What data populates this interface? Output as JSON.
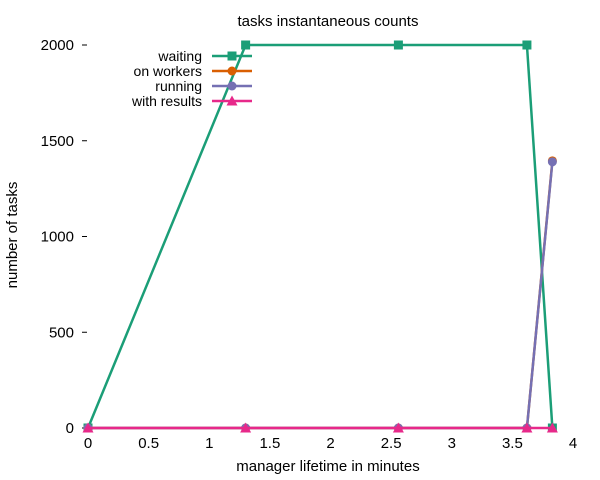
{
  "chart_data": {
    "type": "line",
    "title": "tasks instantaneous counts",
    "xlabel": "manager lifetime in minutes",
    "ylabel": "number of tasks",
    "xlim": [
      0,
      4
    ],
    "ylim": [
      0,
      2000
    ],
    "x_ticks": [
      "0",
      "0.5",
      "1",
      "1.5",
      "2",
      "2.5",
      "3",
      "3.5",
      "4"
    ],
    "y_ticks": [
      "0",
      "500",
      "1000",
      "1500",
      "2000"
    ],
    "grid": false,
    "legend_position": "top-left",
    "series": [
      {
        "name": "waiting",
        "color": "#1b9e77",
        "marker": "square",
        "points": [
          [
            0,
            0
          ],
          [
            1.3,
            2000
          ],
          [
            2.56,
            2000
          ],
          [
            3.62,
            2000
          ],
          [
            3.83,
            0
          ]
        ]
      },
      {
        "name": "on workers",
        "color": "#d95f02",
        "marker": "circle",
        "points": [
          [
            0,
            0
          ],
          [
            1.3,
            0
          ],
          [
            2.56,
            0
          ],
          [
            3.62,
            0
          ],
          [
            3.83,
            1395
          ]
        ]
      },
      {
        "name": "running",
        "color": "#7570b3",
        "marker": "circle",
        "points": [
          [
            0,
            0
          ],
          [
            1.3,
            0
          ],
          [
            2.56,
            0
          ],
          [
            3.62,
            0
          ],
          [
            3.83,
            1390
          ]
        ]
      },
      {
        "name": "with results",
        "color": "#e7298a",
        "marker": "triangle",
        "points": [
          [
            0,
            0
          ],
          [
            1.3,
            0
          ],
          [
            2.56,
            0
          ],
          [
            3.62,
            0
          ],
          [
            3.83,
            0
          ]
        ]
      }
    ]
  }
}
